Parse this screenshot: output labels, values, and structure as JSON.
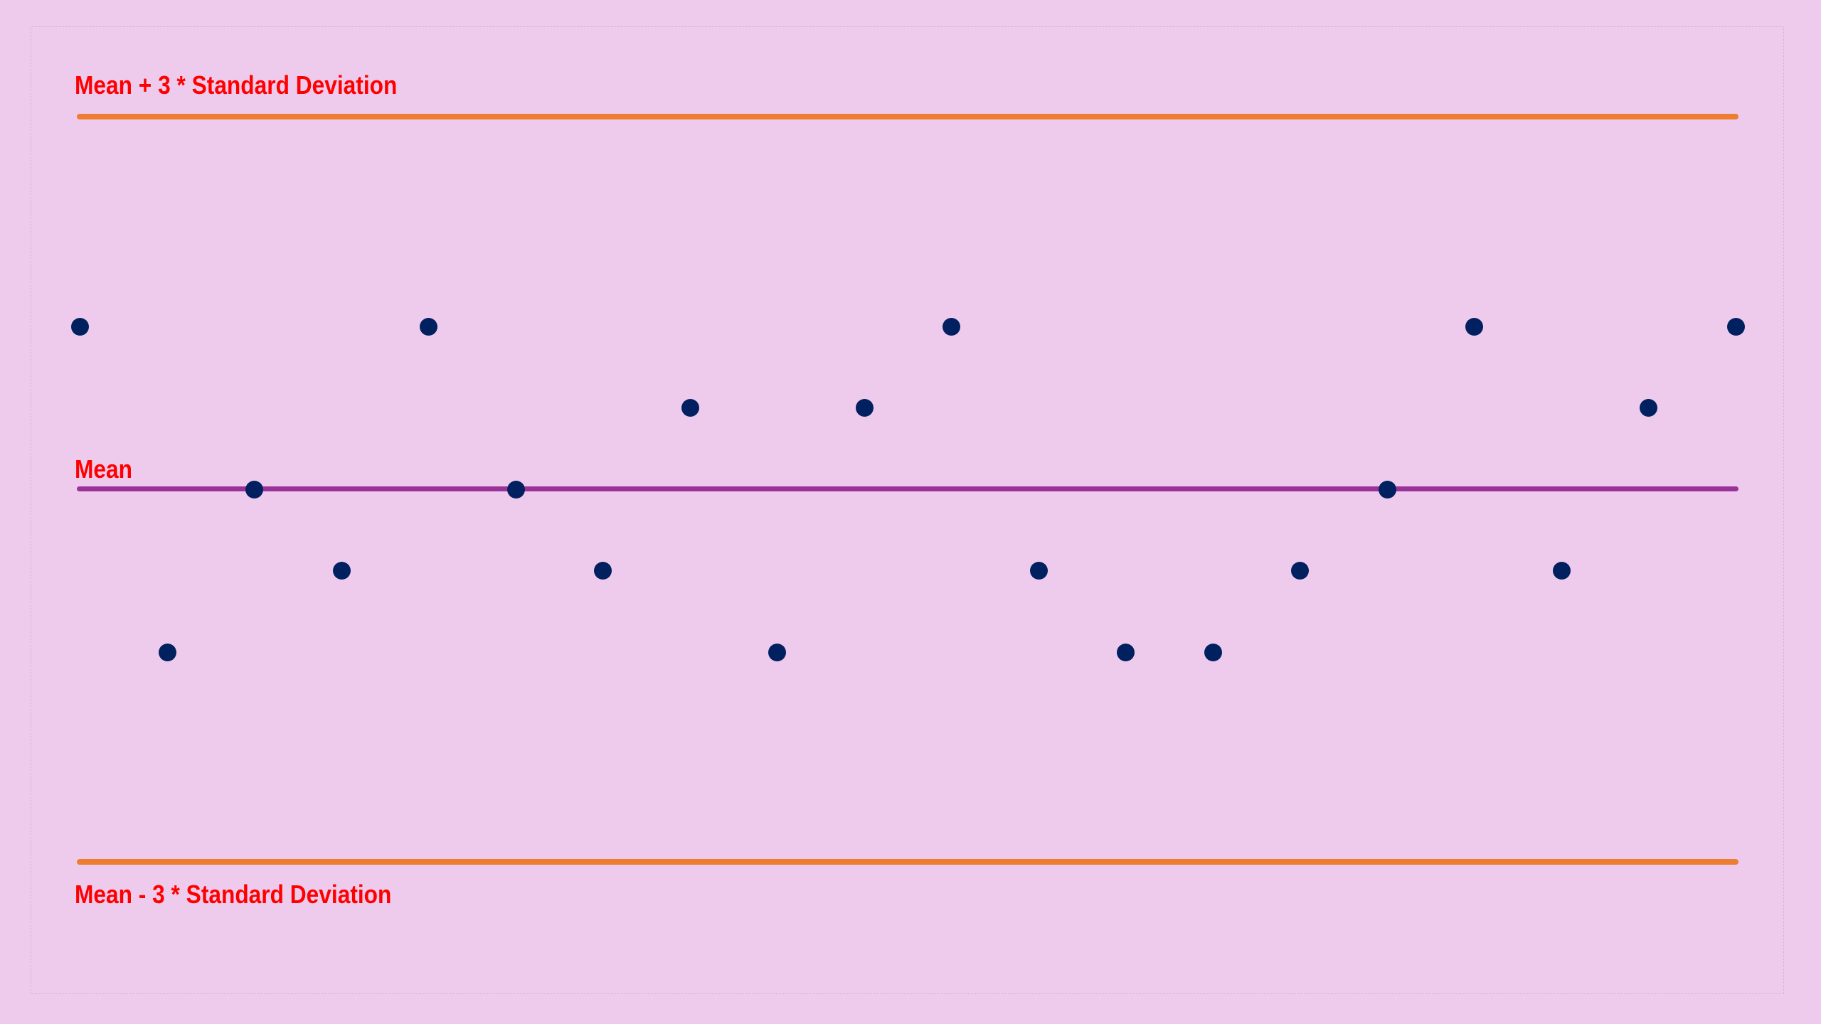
{
  "colors": {
    "background": "#EECBEC",
    "control_limit_line": "#ED7D31",
    "mean_line": "#993399",
    "data_point": "#002060",
    "label_text": "#FF0000"
  },
  "labels": {
    "ucl": "Mean + 3 * Standard Deviation",
    "mean": "Mean",
    "lcl": "Mean - 3 * Standard Deviation"
  },
  "chart_data": {
    "type": "scatter",
    "title": "",
    "xlabel": "",
    "ylabel": "",
    "description": "Control chart: 20 observations plotted against mean and ±3 standard deviation control limits; y values in units of deviation steps from the mean (limits at ±4.5 steps, drawn visually)",
    "x": [
      1,
      2,
      3,
      4,
      5,
      6,
      7,
      8,
      9,
      10,
      11,
      12,
      13,
      14,
      15,
      16,
      17,
      18,
      19,
      20
    ],
    "series": [
      {
        "name": "Observations",
        "values": [
          2,
          -2,
          0,
          -1,
          2,
          0,
          -1,
          1,
          -2,
          1,
          2,
          -1,
          -2,
          -2,
          -1,
          0,
          2,
          -1,
          1,
          2
        ]
      }
    ],
    "reference_lines": [
      {
        "name": "Mean + 3 * Standard Deviation",
        "value": 4.5
      },
      {
        "name": "Mean",
        "value": 0
      },
      {
        "name": "Mean - 3 * Standard Deviation",
        "value": -4.5
      }
    ],
    "ylim": [
      -4.5,
      4.5
    ],
    "grid": false,
    "legend": "none (inline labels)"
  }
}
